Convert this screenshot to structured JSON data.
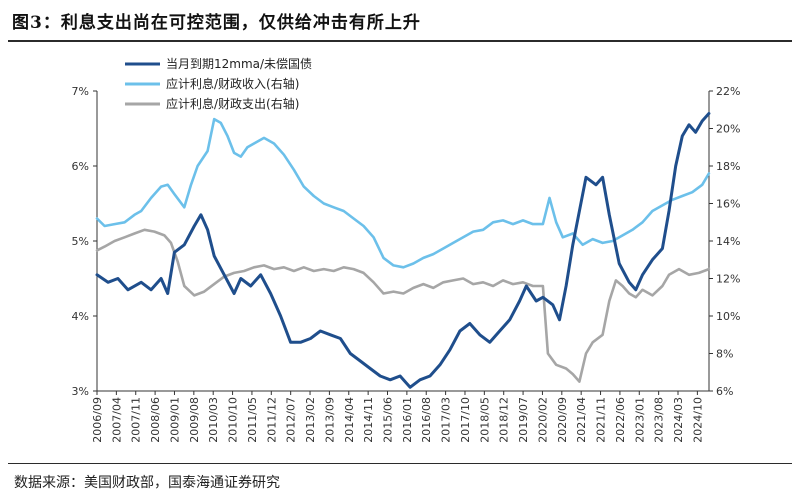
{
  "header": {
    "title": "图3：利息支出尚在可控范围，仅供给冲击有所上升"
  },
  "footer": {
    "source": "数据来源：美国财政部，国泰海通证券研究"
  },
  "chart_data": {
    "type": "line",
    "x_ticks": [
      "2006/09",
      "2007/04",
      "2007/11",
      "2008/06",
      "2009/01",
      "2009/08",
      "2010/03",
      "2010/10",
      "2011/05",
      "2011/12",
      "2012/07",
      "2013/02",
      "2013/09",
      "2014/04",
      "2014/11",
      "2015/06",
      "2016/01",
      "2016/08",
      "2017/03",
      "2017/10",
      "2018/05",
      "2018/12",
      "2019/07",
      "2020/02",
      "2020/09",
      "2021/04",
      "2021/11",
      "2022/06",
      "2023/01",
      "2023/08",
      "2024/03",
      "2024/10"
    ],
    "y_left": {
      "ticks": [
        "3%",
        "4%",
        "5%",
        "6%",
        "7%"
      ],
      "min": 3,
      "max": 7
    },
    "y_right": {
      "ticks": [
        "6%",
        "8%",
        "10%",
        "12%",
        "14%",
        "16%",
        "18%",
        "20%",
        "22%"
      ],
      "min": 6,
      "max": 22
    },
    "series": [
      {
        "name": "当月到期12mma/未偿国债",
        "axis": "left",
        "color": "#1f4e8c",
        "values": [
          [
            2006.67,
            4.55
          ],
          [
            2007.0,
            4.45
          ],
          [
            2007.3,
            4.5
          ],
          [
            2007.6,
            4.35
          ],
          [
            2008.0,
            4.45
          ],
          [
            2008.3,
            4.35
          ],
          [
            2008.6,
            4.5
          ],
          [
            2008.8,
            4.3
          ],
          [
            2009.0,
            4.85
          ],
          [
            2009.3,
            4.95
          ],
          [
            2009.6,
            5.2
          ],
          [
            2009.8,
            5.35
          ],
          [
            2010.0,
            5.15
          ],
          [
            2010.2,
            4.8
          ],
          [
            2010.5,
            4.55
          ],
          [
            2010.8,
            4.3
          ],
          [
            2011.0,
            4.5
          ],
          [
            2011.3,
            4.4
          ],
          [
            2011.6,
            4.55
          ],
          [
            2011.9,
            4.3
          ],
          [
            2012.2,
            4.0
          ],
          [
            2012.5,
            3.65
          ],
          [
            2012.8,
            3.65
          ],
          [
            2013.1,
            3.7
          ],
          [
            2013.4,
            3.8
          ],
          [
            2013.7,
            3.75
          ],
          [
            2014.0,
            3.7
          ],
          [
            2014.3,
            3.5
          ],
          [
            2014.6,
            3.4
          ],
          [
            2014.9,
            3.3
          ],
          [
            2015.2,
            3.2
          ],
          [
            2015.5,
            3.15
          ],
          [
            2015.8,
            3.2
          ],
          [
            2016.1,
            3.05
          ],
          [
            2016.4,
            3.15
          ],
          [
            2016.7,
            3.2
          ],
          [
            2017.0,
            3.35
          ],
          [
            2017.3,
            3.55
          ],
          [
            2017.6,
            3.8
          ],
          [
            2017.9,
            3.9
          ],
          [
            2018.2,
            3.75
          ],
          [
            2018.5,
            3.65
          ],
          [
            2018.8,
            3.8
          ],
          [
            2019.1,
            3.95
          ],
          [
            2019.4,
            4.2
          ],
          [
            2019.6,
            4.4
          ],
          [
            2019.9,
            4.2
          ],
          [
            2020.1,
            4.25
          ],
          [
            2020.4,
            4.15
          ],
          [
            2020.6,
            3.95
          ],
          [
            2020.8,
            4.4
          ],
          [
            2021.0,
            4.95
          ],
          [
            2021.2,
            5.4
          ],
          [
            2021.4,
            5.85
          ],
          [
            2021.7,
            5.75
          ],
          [
            2021.9,
            5.85
          ],
          [
            2022.1,
            5.35
          ],
          [
            2022.4,
            4.7
          ],
          [
            2022.7,
            4.45
          ],
          [
            2022.9,
            4.35
          ],
          [
            2023.1,
            4.55
          ],
          [
            2023.4,
            4.75
          ],
          [
            2023.7,
            4.9
          ],
          [
            2023.9,
            5.4
          ],
          [
            2024.1,
            6.0
          ],
          [
            2024.3,
            6.4
          ],
          [
            2024.5,
            6.55
          ],
          [
            2024.7,
            6.45
          ],
          [
            2024.9,
            6.6
          ],
          [
            2025.1,
            6.7
          ]
        ]
      },
      {
        "name": "应计利息/财政收入(右轴)",
        "axis": "right",
        "color": "#6cc0ea",
        "values": [
          [
            2006.67,
            15.2
          ],
          [
            2006.9,
            14.8
          ],
          [
            2007.2,
            14.9
          ],
          [
            2007.5,
            15.0
          ],
          [
            2007.8,
            15.4
          ],
          [
            2008.0,
            15.6
          ],
          [
            2008.3,
            16.3
          ],
          [
            2008.6,
            16.9
          ],
          [
            2008.8,
            17.0
          ],
          [
            2009.0,
            16.5
          ],
          [
            2009.3,
            15.8
          ],
          [
            2009.5,
            17.0
          ],
          [
            2009.7,
            18.0
          ],
          [
            2010.0,
            18.8
          ],
          [
            2010.2,
            20.5
          ],
          [
            2010.4,
            20.3
          ],
          [
            2010.6,
            19.6
          ],
          [
            2010.8,
            18.7
          ],
          [
            2011.0,
            18.5
          ],
          [
            2011.2,
            19.0
          ],
          [
            2011.4,
            19.2
          ],
          [
            2011.7,
            19.5
          ],
          [
            2012.0,
            19.2
          ],
          [
            2012.3,
            18.6
          ],
          [
            2012.6,
            17.8
          ],
          [
            2012.9,
            16.9
          ],
          [
            2013.2,
            16.4
          ],
          [
            2013.5,
            16.0
          ],
          [
            2013.8,
            15.8
          ],
          [
            2014.1,
            15.6
          ],
          [
            2014.4,
            15.2
          ],
          [
            2014.7,
            14.8
          ],
          [
            2015.0,
            14.2
          ],
          [
            2015.3,
            13.1
          ],
          [
            2015.6,
            12.7
          ],
          [
            2015.9,
            12.6
          ],
          [
            2016.2,
            12.8
          ],
          [
            2016.5,
            13.1
          ],
          [
            2016.8,
            13.3
          ],
          [
            2017.1,
            13.6
          ],
          [
            2017.4,
            13.9
          ],
          [
            2017.7,
            14.2
          ],
          [
            2018.0,
            14.5
          ],
          [
            2018.3,
            14.6
          ],
          [
            2018.6,
            15.0
          ],
          [
            2018.9,
            15.1
          ],
          [
            2019.2,
            14.9
          ],
          [
            2019.5,
            15.1
          ],
          [
            2019.8,
            14.9
          ],
          [
            2020.1,
            14.9
          ],
          [
            2020.3,
            16.3
          ],
          [
            2020.5,
            15.0
          ],
          [
            2020.7,
            14.2
          ],
          [
            2021.0,
            14.4
          ],
          [
            2021.3,
            13.8
          ],
          [
            2021.6,
            14.1
          ],
          [
            2021.9,
            13.9
          ],
          [
            2022.2,
            14.0
          ],
          [
            2022.5,
            14.3
          ],
          [
            2022.8,
            14.6
          ],
          [
            2023.1,
            15.0
          ],
          [
            2023.4,
            15.6
          ],
          [
            2023.7,
            15.9
          ],
          [
            2024.0,
            16.2
          ],
          [
            2024.3,
            16.4
          ],
          [
            2024.6,
            16.6
          ],
          [
            2024.9,
            17.0
          ],
          [
            2025.1,
            17.6
          ]
        ]
      },
      {
        "name": "应计利息/财政支出(右轴)",
        "axis": "right",
        "color": "#a6a6a6",
        "values": [
          [
            2006.67,
            13.5
          ],
          [
            2006.9,
            13.7
          ],
          [
            2007.2,
            14.0
          ],
          [
            2007.5,
            14.2
          ],
          [
            2007.8,
            14.4
          ],
          [
            2008.1,
            14.6
          ],
          [
            2008.4,
            14.5
          ],
          [
            2008.7,
            14.3
          ],
          [
            2008.9,
            13.9
          ],
          [
            2009.1,
            12.9
          ],
          [
            2009.3,
            11.6
          ],
          [
            2009.6,
            11.1
          ],
          [
            2009.9,
            11.3
          ],
          [
            2010.2,
            11.7
          ],
          [
            2010.5,
            12.1
          ],
          [
            2010.8,
            12.3
          ],
          [
            2011.1,
            12.4
          ],
          [
            2011.4,
            12.6
          ],
          [
            2011.7,
            12.7
          ],
          [
            2012.0,
            12.5
          ],
          [
            2012.3,
            12.6
          ],
          [
            2012.6,
            12.4
          ],
          [
            2012.9,
            12.6
          ],
          [
            2013.2,
            12.4
          ],
          [
            2013.5,
            12.5
          ],
          [
            2013.8,
            12.4
          ],
          [
            2014.1,
            12.6
          ],
          [
            2014.4,
            12.5
          ],
          [
            2014.7,
            12.3
          ],
          [
            2015.0,
            11.8
          ],
          [
            2015.3,
            11.2
          ],
          [
            2015.6,
            11.3
          ],
          [
            2015.9,
            11.2
          ],
          [
            2016.2,
            11.5
          ],
          [
            2016.5,
            11.7
          ],
          [
            2016.8,
            11.5
          ],
          [
            2017.1,
            11.8
          ],
          [
            2017.4,
            11.9
          ],
          [
            2017.7,
            12.0
          ],
          [
            2018.0,
            11.7
          ],
          [
            2018.3,
            11.8
          ],
          [
            2018.6,
            11.6
          ],
          [
            2018.9,
            11.9
          ],
          [
            2019.2,
            11.7
          ],
          [
            2019.5,
            11.8
          ],
          [
            2019.8,
            11.6
          ],
          [
            2020.1,
            11.6
          ],
          [
            2020.25,
            8.0
          ],
          [
            2020.5,
            7.4
          ],
          [
            2020.8,
            7.2
          ],
          [
            2021.0,
            6.9
          ],
          [
            2021.2,
            6.5
          ],
          [
            2021.4,
            8.0
          ],
          [
            2021.6,
            8.6
          ],
          [
            2021.9,
            9.0
          ],
          [
            2022.1,
            10.8
          ],
          [
            2022.3,
            11.9
          ],
          [
            2022.5,
            11.6
          ],
          [
            2022.7,
            11.2
          ],
          [
            2022.9,
            11.0
          ],
          [
            2023.1,
            11.4
          ],
          [
            2023.4,
            11.1
          ],
          [
            2023.7,
            11.6
          ],
          [
            2023.9,
            12.2
          ],
          [
            2024.2,
            12.5
          ],
          [
            2024.5,
            12.2
          ],
          [
            2024.8,
            12.3
          ],
          [
            2025.1,
            12.5
          ]
        ]
      }
    ]
  }
}
